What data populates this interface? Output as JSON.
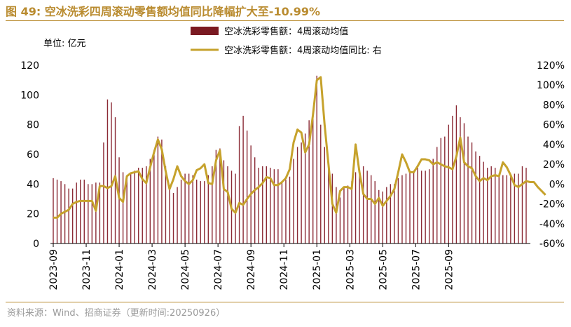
{
  "header": {
    "title": "图 49:  空冰洗彩四周滚动零售额均值同比降幅扩大至-10.99%"
  },
  "footer": {
    "source": "资料来源：Wind、招商证券（更新时间:20250926）"
  },
  "colors": {
    "title": "#b98b2f",
    "bar": "#8b2a35",
    "line": "#c6a22c",
    "rule": "#b98b2f"
  },
  "chart_data": {
    "type": "bar+line",
    "title": "图 49:  空冰洗彩四周滚动零售额均值同比降幅扩大至-10.99%",
    "unit_label": "单位:  亿元",
    "ylim_left": [
      0,
      120
    ],
    "ylim_right": [
      -60,
      120
    ],
    "yticks_left": [
      "0",
      "20",
      "40",
      "60",
      "80",
      "100",
      "120"
    ],
    "yticks_right": [
      "-60%",
      "-40%",
      "-20%",
      "0%",
      "20%",
      "40%",
      "60%",
      "80%",
      "100%",
      "120%"
    ],
    "xticks": [
      "2023-09",
      "2023-11",
      "2024-01",
      "2024-03",
      "2024-05",
      "2024-07",
      "2024-09",
      "2024-11",
      "2025-01",
      "2025-03",
      "2025-05",
      "2025-07",
      "2025-09"
    ],
    "legend": [
      {
        "name": "空冰洗彩零售额：4周滚动均值",
        "kind": "bar"
      },
      {
        "name": "空冰洗彩零售额：4周滚动均值同比: 右",
        "kind": "line"
      }
    ],
    "series": [
      {
        "name": "空冰洗彩零售额：4周滚动均值",
        "axis": "left",
        "type": "bar",
        "values": [
          44,
          43,
          42,
          40,
          37,
          37,
          41,
          43,
          43,
          40,
          40,
          41,
          41,
          68,
          97,
          95,
          85,
          58,
          48,
          43,
          47,
          49,
          51,
          51,
          52,
          57,
          63,
          72,
          70,
          52,
          37,
          34,
          38,
          43,
          47,
          47,
          46,
          43,
          42,
          42,
          46,
          52,
          63,
          64,
          56,
          52,
          49,
          47,
          79,
          86,
          76,
          66,
          58,
          51,
          52,
          52,
          51,
          50,
          50,
          42,
          43,
          45,
          57,
          65,
          68,
          74,
          83,
          87,
          113,
          80,
          65,
          53,
          47,
          38,
          31,
          38,
          39,
          42,
          48,
          49,
          52,
          49,
          46,
          42,
          36,
          35,
          38,
          40,
          40,
          44,
          46,
          47,
          48,
          49,
          51,
          49,
          49,
          50,
          57,
          65,
          71,
          72,
          80,
          86,
          93,
          85,
          81,
          72,
          68,
          62,
          59,
          55,
          51,
          52,
          51,
          47,
          46,
          46,
          45,
          47,
          47,
          52,
          51
        ]
      },
      {
        "name": "空冰洗彩零售额：4周滚动均值同比",
        "axis": "right",
        "type": "line",
        "values": [
          -34,
          -34,
          -30,
          -28,
          -26,
          -20,
          -18,
          -17,
          -17,
          -17,
          -17,
          -27,
          -2,
          -2,
          -4,
          -2,
          8,
          -14,
          -18,
          8,
          11,
          12,
          13,
          5,
          1,
          17,
          32,
          45,
          35,
          13,
          -5,
          5,
          18,
          8,
          3,
          0,
          4,
          14,
          16,
          20,
          1,
          0,
          24,
          34,
          -5,
          -8,
          -25,
          -29,
          -19,
          -21,
          -15,
          -10,
          -6,
          -3,
          1,
          7,
          6,
          -1,
          -1,
          2,
          6,
          15,
          42,
          55,
          52,
          32,
          40,
          70,
          105,
          108,
          60,
          20,
          -20,
          -29,
          -7,
          -3,
          -3,
          -5,
          40,
          12,
          -10,
          -15,
          -15,
          -20,
          -14,
          -22,
          -17,
          -12,
          -5,
          12,
          30,
          22,
          12,
          12,
          18,
          25,
          25,
          24,
          20,
          22,
          20,
          18,
          17,
          15,
          28,
          47,
          22,
          18,
          16,
          8,
          3,
          6,
          4,
          8,
          9,
          8,
          22,
          17,
          9,
          -1,
          -3,
          0,
          3,
          2,
          2,
          -3,
          -7,
          -11
        ]
      }
    ]
  }
}
